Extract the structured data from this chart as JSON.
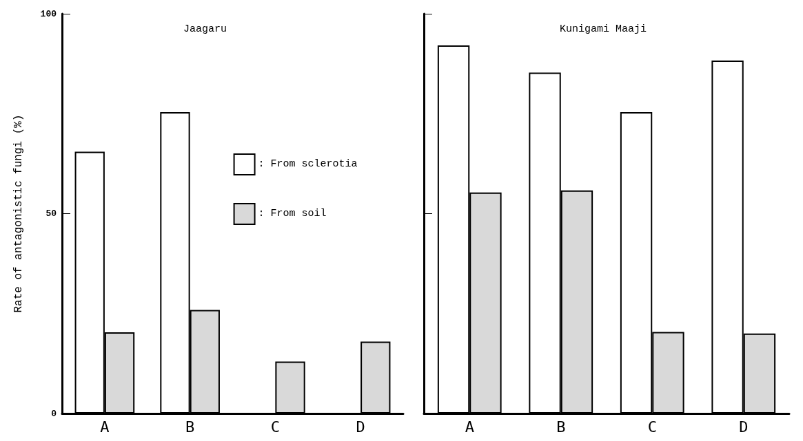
{
  "chart_data": [
    {
      "type": "bar",
      "title": "Jaagaru",
      "ylabel": "Rate of antagonistic fungi (%)",
      "categories": [
        "A",
        "B",
        "C",
        "D"
      ],
      "series": [
        {
          "name": ": From sclerotia",
          "color": "#ffffff",
          "values": [
            65.5,
            75.4,
            null,
            null
          ]
        },
        {
          "name": ": From soil",
          "color": "#d9d9d9",
          "values": [
            20.3,
            25.9,
            13,
            18
          ]
        }
      ],
      "ylim": [
        0,
        100
      ],
      "yticks": [
        0,
        50,
        100
      ],
      "grid": false,
      "legend": "right"
    },
    {
      "type": "bar",
      "title": "Kunigami Maaji",
      "categories": [
        "A",
        "B",
        "C",
        "D"
      ],
      "series": [
        {
          "color": "#ffffff",
          "values": [
            92.1,
            85.3,
            75.4,
            88.3
          ]
        },
        {
          "color": "#d9d9d9",
          "values": [
            55.3,
            55.8,
            20.4,
            20
          ]
        }
      ],
      "ylim": [
        0,
        100
      ],
      "yticks": [
        0,
        50,
        100
      ],
      "grid": false,
      "legend": false,
      "tick_labels": "x"
    }
  ]
}
